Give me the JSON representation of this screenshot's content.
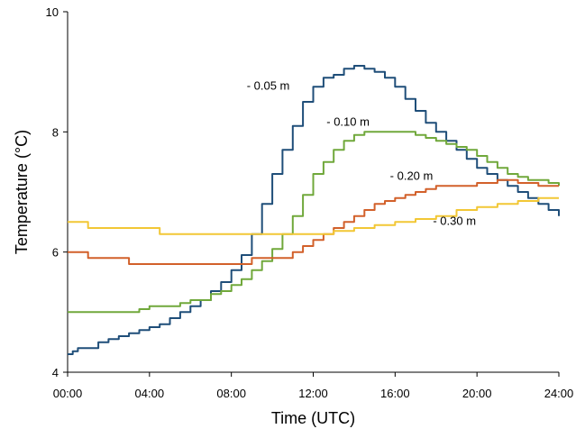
{
  "chart_data": {
    "type": "line",
    "xlabel": "Time (UTC)",
    "ylabel": "Temperature (°C)",
    "xlim": [
      0,
      24
    ],
    "ylim": [
      4,
      10
    ],
    "grid": false,
    "legend": "inline labels",
    "x_ticks": [
      "00:00",
      "04:00",
      "08:00",
      "12:00",
      "16:00",
      "20:00",
      "24:00"
    ],
    "y_ticks": [
      "4",
      "6",
      "8",
      "10"
    ],
    "series": [
      {
        "name": "- 0.05 m",
        "color": "#1f4e79",
        "x": [
          0,
          0.25,
          0.5,
          1,
          1.5,
          2,
          2.5,
          3,
          3.5,
          4,
          4.5,
          5,
          5.5,
          6,
          6.5,
          7,
          7.5,
          8,
          8.5,
          9,
          9.5,
          10,
          10.5,
          11,
          11.5,
          12,
          12.5,
          13,
          13.5,
          14,
          14.5,
          15,
          15.5,
          16,
          16.5,
          17,
          17.5,
          18,
          18.5,
          19,
          19.5,
          20,
          20.5,
          21,
          21.5,
          22,
          22.5,
          23,
          23.5,
          24
        ],
        "y": [
          4.3,
          4.35,
          4.4,
          4.4,
          4.5,
          4.55,
          4.6,
          4.65,
          4.7,
          4.75,
          4.8,
          4.9,
          5.0,
          5.1,
          5.2,
          5.35,
          5.5,
          5.7,
          5.95,
          6.3,
          6.8,
          7.3,
          7.7,
          8.1,
          8.5,
          8.75,
          8.9,
          8.95,
          9.05,
          9.1,
          9.05,
          9.0,
          8.9,
          8.75,
          8.55,
          8.35,
          8.15,
          8.0,
          7.85,
          7.7,
          7.55,
          7.4,
          7.3,
          7.2,
          7.1,
          7.0,
          6.9,
          6.8,
          6.7,
          6.6
        ]
      },
      {
        "name": "- 0.10 m",
        "color": "#70a83b",
        "x": [
          0,
          1,
          2,
          3,
          3.5,
          4,
          5,
          5.5,
          6,
          7,
          7.5,
          8,
          8.5,
          9,
          9.5,
          10,
          10.5,
          11,
          11.5,
          12,
          12.5,
          13,
          13.5,
          14,
          14.5,
          15,
          15.5,
          16,
          16.5,
          17,
          17.5,
          18,
          18.5,
          19,
          19.5,
          20,
          20.5,
          21,
          21.5,
          22,
          22.5,
          23,
          23.5,
          24
        ],
        "y": [
          5.0,
          5.0,
          5.0,
          5.0,
          5.05,
          5.1,
          5.1,
          5.15,
          5.2,
          5.3,
          5.35,
          5.45,
          5.55,
          5.7,
          5.85,
          6.05,
          6.3,
          6.6,
          6.95,
          7.3,
          7.5,
          7.7,
          7.85,
          7.95,
          8.0,
          8.0,
          8.0,
          8.0,
          8.0,
          7.95,
          7.9,
          7.85,
          7.8,
          7.75,
          7.7,
          7.6,
          7.5,
          7.4,
          7.3,
          7.25,
          7.2,
          7.2,
          7.15,
          7.1
        ]
      },
      {
        "name": "- 0.20 m",
        "color": "#d2602a",
        "x": [
          0,
          0.5,
          1,
          2,
          2.5,
          3,
          4,
          5,
          6,
          7,
          8,
          8.5,
          9,
          10,
          11,
          11.5,
          12,
          12.5,
          13,
          13.5,
          14,
          14.5,
          15,
          15.5,
          16,
          16.5,
          17,
          17.5,
          18,
          18.5,
          19,
          20,
          21,
          21.5,
          22,
          23,
          24
        ],
        "y": [
          6.0,
          6.0,
          5.9,
          5.9,
          5.9,
          5.8,
          5.8,
          5.8,
          5.8,
          5.8,
          5.8,
          5.8,
          5.9,
          5.9,
          6.0,
          6.1,
          6.2,
          6.3,
          6.4,
          6.5,
          6.6,
          6.7,
          6.8,
          6.85,
          6.9,
          6.95,
          7.0,
          7.05,
          7.1,
          7.1,
          7.1,
          7.15,
          7.2,
          7.2,
          7.15,
          7.1,
          7.1
        ]
      },
      {
        "name": "- 0.30 m",
        "color": "#f2c735",
        "x": [
          0,
          0.5,
          1,
          2,
          3,
          4,
          4.5,
          5,
          6,
          7,
          8,
          9,
          10,
          11,
          12,
          13,
          14,
          15,
          16,
          17,
          18,
          19,
          20,
          21,
          22,
          23,
          24
        ],
        "y": [
          6.5,
          6.5,
          6.4,
          6.4,
          6.4,
          6.4,
          6.3,
          6.3,
          6.3,
          6.3,
          6.3,
          6.3,
          6.3,
          6.3,
          6.3,
          6.35,
          6.4,
          6.45,
          6.5,
          6.55,
          6.6,
          6.7,
          6.75,
          6.8,
          6.85,
          6.9,
          6.9
        ]
      }
    ],
    "annotations": [
      {
        "text": "- 0.05 m",
        "x": 9.8,
        "y": 8.7
      },
      {
        "text": "- 0.10 m",
        "x": 13.7,
        "y": 8.1
      },
      {
        "text": "- 0.20 m",
        "x": 16.8,
        "y": 7.2
      },
      {
        "text": "- 0.30 m",
        "x": 18.9,
        "y": 6.45
      }
    ]
  }
}
